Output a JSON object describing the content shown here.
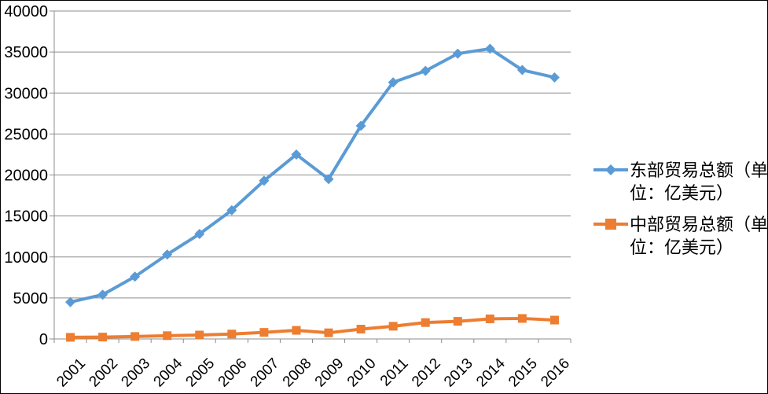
{
  "chart_data": {
    "type": "line",
    "title": "",
    "categories": [
      "2001",
      "2002",
      "2003",
      "2004",
      "2005",
      "2006",
      "2007",
      "2008",
      "2009",
      "2010",
      "2011",
      "2012",
      "2013",
      "2014",
      "2015",
      "2016"
    ],
    "series": [
      {
        "name": "东部贸易总额（单位：亿美元）",
        "color": "#5B9BD5",
        "marker": "diamond",
        "values": [
          4500,
          5400,
          7600,
          10300,
          12800,
          15700,
          19300,
          22500,
          19500,
          26000,
          31300,
          32700,
          34800,
          35400,
          32800,
          31900
        ]
      },
      {
        "name": "中部贸易总额（单位：亿美元）",
        "color": "#ED7D31",
        "marker": "square",
        "values": [
          200,
          230,
          300,
          400,
          480,
          600,
          800,
          1050,
          750,
          1200,
          1550,
          2000,
          2150,
          2450,
          2500,
          2300
        ]
      }
    ],
    "ylim": [
      0,
      40000
    ],
    "yticks": [
      0,
      5000,
      10000,
      15000,
      20000,
      25000,
      30000,
      35000,
      40000
    ],
    "xlabel": "",
    "ylabel": "",
    "grid": "horizontal",
    "legend_position": "right",
    "grid_color": "#8C8C8C",
    "axis_color": "#8C8C8C",
    "text_color": "#000000"
  }
}
